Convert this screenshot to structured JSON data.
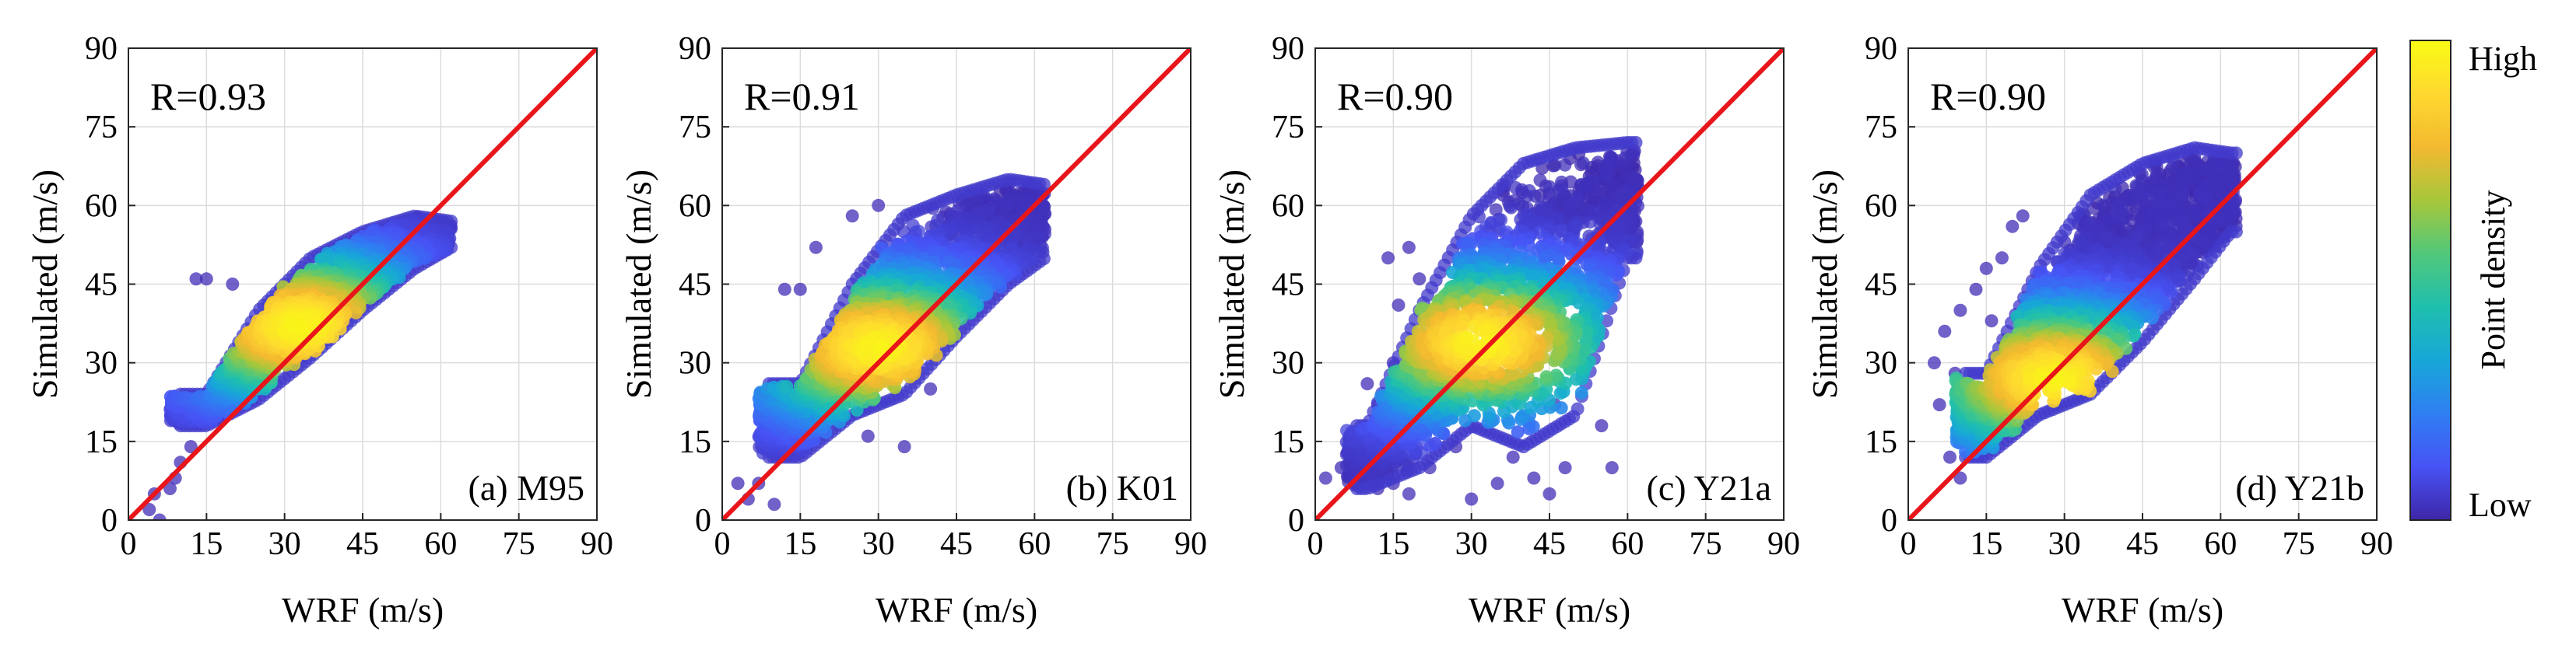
{
  "chart_data": [
    {
      "type": "scatter",
      "panel": "(a) M95",
      "r_label": "R=0.93",
      "xlabel": "WRF (m/s)",
      "ylabel": "Simulated (m/s)",
      "xlim": [
        0,
        90
      ],
      "ylim": [
        0,
        90
      ],
      "xticks": [
        0,
        15,
        30,
        45,
        60,
        75,
        90
      ],
      "yticks": [
        0,
        15,
        30,
        45,
        60,
        75,
        90
      ],
      "grid": true,
      "reference_line": {
        "from": [
          0,
          0
        ],
        "to": [
          90,
          90
        ],
        "color": "#e8161b"
      },
      "cloud": {
        "x_range": [
          4,
          62
        ],
        "center": [
          33,
          37
        ],
        "upper_edge": [
          [
            15,
            24
          ],
          [
            25,
            40
          ],
          [
            35,
            50
          ],
          [
            45,
            55
          ],
          [
            55,
            58
          ],
          [
            62,
            57
          ]
        ],
        "lower_edge": [
          [
            15,
            18
          ],
          [
            25,
            23
          ],
          [
            35,
            31
          ],
          [
            45,
            40
          ],
          [
            55,
            48
          ],
          [
            62,
            52
          ]
        ],
        "outliers": [
          [
            4,
            2
          ],
          [
            6,
            0
          ],
          [
            8,
            6
          ],
          [
            10,
            11
          ],
          [
            12,
            14
          ],
          [
            13,
            46
          ],
          [
            15,
            46
          ],
          [
            20,
            45
          ],
          [
            5,
            5
          ],
          [
            9,
            8
          ]
        ]
      }
    },
    {
      "type": "scatter",
      "panel": "(b) K01",
      "r_label": "R=0.91",
      "xlabel": "WRF (m/s)",
      "ylabel": "Simulated (m/s)",
      "xlim": [
        0,
        90
      ],
      "ylim": [
        0,
        90
      ],
      "xticks": [
        0,
        15,
        30,
        45,
        60,
        75,
        90
      ],
      "yticks": [
        0,
        15,
        30,
        45,
        60,
        75,
        90
      ],
      "grid": true,
      "reference_line": {
        "from": [
          0,
          0
        ],
        "to": [
          90,
          90
        ],
        "color": "#e8161b"
      },
      "cloud": {
        "x_range": [
          3,
          62
        ],
        "center": [
          30,
          33
        ],
        "upper_edge": [
          [
            15,
            26
          ],
          [
            25,
            45
          ],
          [
            35,
            58
          ],
          [
            45,
            62
          ],
          [
            55,
            65
          ],
          [
            62,
            64
          ]
        ],
        "lower_edge": [
          [
            15,
            12
          ],
          [
            25,
            20
          ],
          [
            35,
            24
          ],
          [
            45,
            35
          ],
          [
            55,
            45
          ],
          [
            62,
            50
          ]
        ],
        "outliers": [
          [
            3,
            7
          ],
          [
            5,
            4
          ],
          [
            7,
            7
          ],
          [
            10,
            3
          ],
          [
            12,
            44
          ],
          [
            15,
            44
          ],
          [
            18,
            52
          ],
          [
            25,
            58
          ],
          [
            30,
            60
          ],
          [
            35,
            14
          ],
          [
            40,
            25
          ],
          [
            28,
            16
          ]
        ]
      }
    },
    {
      "type": "scatter",
      "panel": "(c) Y21a",
      "r_label": "R=0.90",
      "xlabel": "WRF (m/s)",
      "ylabel": "Simulated (m/s)",
      "xlim": [
        0,
        90
      ],
      "ylim": [
        0,
        90
      ],
      "xticks": [
        0,
        15,
        30,
        45,
        60,
        75,
        90
      ],
      "yticks": [
        0,
        15,
        30,
        45,
        60,
        75,
        90
      ],
      "grid": true,
      "reference_line": {
        "from": [
          0,
          0
        ],
        "to": [
          90,
          90
        ],
        "color": "#e8161b"
      },
      "cloud": {
        "x_range": [
          2,
          62
        ],
        "center": [
          32,
          34
        ],
        "upper_edge": [
          [
            10,
            18
          ],
          [
            20,
            40
          ],
          [
            30,
            58
          ],
          [
            40,
            68
          ],
          [
            50,
            71
          ],
          [
            60,
            72
          ]
        ],
        "lower_edge": [
          [
            10,
            6
          ],
          [
            20,
            10
          ],
          [
            30,
            18
          ],
          [
            40,
            14
          ],
          [
            50,
            20
          ],
          [
            60,
            50
          ]
        ],
        "outliers": [
          [
            2,
            8
          ],
          [
            5,
            10
          ],
          [
            8,
            16
          ],
          [
            12,
            6
          ],
          [
            15,
            7
          ],
          [
            18,
            5
          ],
          [
            22,
            10
          ],
          [
            27,
            14
          ],
          [
            30,
            4
          ],
          [
            35,
            7
          ],
          [
            38,
            12
          ],
          [
            42,
            8
          ],
          [
            45,
            5
          ],
          [
            48,
            10
          ],
          [
            12,
            22
          ],
          [
            15,
            30
          ],
          [
            10,
            26
          ],
          [
            14,
            50
          ],
          [
            18,
            52
          ],
          [
            16,
            41
          ],
          [
            20,
            46
          ],
          [
            55,
            18
          ],
          [
            58,
            55
          ],
          [
            52,
            30
          ],
          [
            46,
            22
          ],
          [
            57,
            10
          ]
        ]
      }
    },
    {
      "type": "scatter",
      "panel": "(d) Y21b",
      "r_label": "R=0.90",
      "xlabel": "WRF (m/s)",
      "ylabel": "Simulated (m/s)",
      "xlim": [
        0,
        90
      ],
      "ylim": [
        0,
        90
      ],
      "xticks": [
        0,
        15,
        30,
        45,
        60,
        75,
        90
      ],
      "yticks": [
        0,
        15,
        30,
        45,
        60,
        75,
        90
      ],
      "grid": true,
      "reference_line": {
        "from": [
          0,
          0
        ],
        "to": [
          90,
          90
        ],
        "color": "#e8161b"
      },
      "cloud": {
        "x_range": [
          5,
          63
        ],
        "center": [
          28,
          27
        ],
        "upper_edge": [
          [
            15,
            28
          ],
          [
            25,
            48
          ],
          [
            35,
            62
          ],
          [
            45,
            68
          ],
          [
            55,
            71
          ],
          [
            62,
            70
          ]
        ],
        "lower_edge": [
          [
            15,
            12
          ],
          [
            25,
            20
          ],
          [
            35,
            24
          ],
          [
            45,
            34
          ],
          [
            55,
            46
          ],
          [
            62,
            55
          ]
        ],
        "outliers": [
          [
            5,
            30
          ],
          [
            6,
            22
          ],
          [
            8,
            12
          ],
          [
            10,
            8
          ],
          [
            7,
            36
          ],
          [
            10,
            40
          ],
          [
            13,
            44
          ],
          [
            15,
            48
          ],
          [
            18,
            50
          ],
          [
            20,
            56
          ],
          [
            22,
            58
          ],
          [
            12,
            17
          ],
          [
            9,
            28
          ],
          [
            16,
            38
          ]
        ]
      }
    }
  ],
  "colorbar": {
    "label": "Point density",
    "high_label": "High",
    "low_label": "Low",
    "stops": [
      "#3e26a8",
      "#4753f5",
      "#2f7ff2",
      "#17a7d7",
      "#1fbfae",
      "#51c87a",
      "#a7c73b",
      "#f3b930",
      "#fed930",
      "#f9fb15"
    ]
  }
}
